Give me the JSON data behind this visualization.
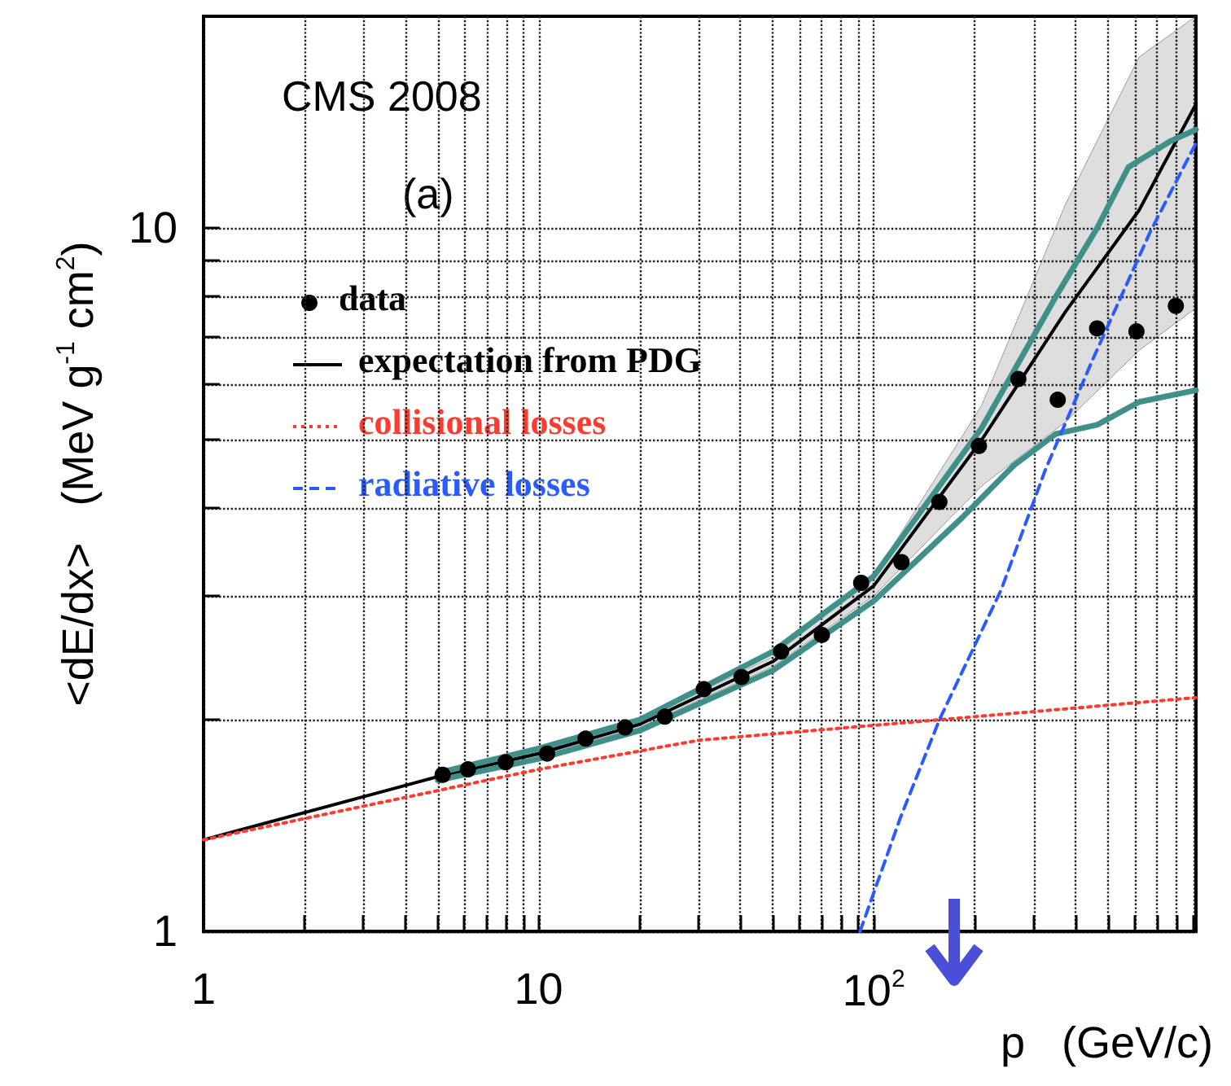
{
  "chart_data": {
    "type": "line",
    "xlabel": "p   (GeV/c)",
    "ylabel": "<dE/dx>   (MeV g$^{-1}$ cm$^{2}$)",
    "annotations": [
      "CMS 2008",
      "(a)"
    ],
    "log": "xy",
    "xlim": [
      1,
      915
    ],
    "ylim": [
      1,
      20
    ],
    "xticks": [
      1,
      {
        "value": 2,
        "label": null
      },
      {
        "value": 3,
        "label": null
      },
      {
        "value": 4,
        "label": null
      },
      {
        "value": 5,
        "label": null
      },
      {
        "value": 6,
        "label": null
      },
      {
        "value": 7,
        "label": null
      },
      {
        "value": 8,
        "label": null
      },
      {
        "value": 9,
        "label": null
      },
      10,
      {
        "value": 20,
        "label": null
      },
      {
        "value": 30,
        "label": null
      },
      {
        "value": 40,
        "label": null
      },
      {
        "value": 50,
        "label": null
      },
      {
        "value": 60,
        "label": null
      },
      {
        "value": 70,
        "label": null
      },
      {
        "value": 80,
        "label": null
      },
      {
        "value": 90,
        "label": null
      },
      {
        "value": 100,
        "label": "10$^{2}$"
      },
      {
        "value": 200,
        "label": null
      },
      {
        "value": 300,
        "label": null
      },
      {
        "value": 400,
        "label": null
      },
      {
        "value": 500,
        "label": null
      },
      {
        "value": 600,
        "label": null
      },
      {
        "value": 700,
        "label": null
      },
      {
        "value": 800,
        "label": null
      },
      {
        "value": 900,
        "label": null
      }
    ],
    "yticks": [
      1,
      {
        "value": 2,
        "label": null
      },
      {
        "value": 3,
        "label": null
      },
      {
        "value": 4,
        "label": null
      },
      {
        "value": 5,
        "label": null
      },
      {
        "value": 6,
        "label": null
      },
      {
        "value": 7,
        "label": null
      },
      {
        "value": 8,
        "label": null
      },
      {
        "value": 9,
        "label": null
      },
      10
    ],
    "grid": true,
    "legend": "left",
    "series": [
      {
        "name": "data",
        "type": "scatter",
        "marker": "circle",
        "color": "#000000",
        "x": [
          5.17,
          6.15,
          7.97,
          10.6,
          13.8,
          18.1,
          23.8,
          31.1,
          40.3,
          52.9,
          70,
          91.7,
          121,
          157,
          206,
          270,
          354,
          464,
          608,
          797
        ],
        "values": [
          1.67,
          1.7,
          1.74,
          1.79,
          1.88,
          1.95,
          2.02,
          2.21,
          2.3,
          2.5,
          2.64,
          3.13,
          3.35,
          4.08,
          4.9,
          6.1,
          5.7,
          7.2,
          7.13,
          7.75
        ]
      },
      {
        "name": "expectation from PDG",
        "marker": "none",
        "line_style": "solid",
        "color": "#000000",
        "x": [
          1,
          5,
          10,
          20,
          50,
          100,
          210,
          373,
          619,
          915
        ],
        "values": [
          1.35,
          1.66,
          1.79,
          1.97,
          2.42,
          3.1,
          5.0,
          7.6,
          10.6,
          15.0
        ],
        "lower": [
          1.35,
          1.66,
          1.78,
          1.95,
          2.38,
          3.0,
          4.3,
          5.3,
          6.7,
          7.7
        ],
        "upper": [
          1.35,
          1.66,
          1.8,
          1.99,
          2.46,
          3.2,
          5.6,
          10.8,
          17.5,
          20
        ]
      },
      {
        "marker": "none",
        "line_style": "solid",
        "color": "#3f8f8a",
        "x": [
          5,
          10,
          20,
          50,
          100,
          210,
          350,
          464,
          575,
          770,
          915
        ],
        "values": [
          1.68,
          1.82,
          2.0,
          2.5,
          3.2,
          5.2,
          8.0,
          10.0,
          12.2,
          13.3,
          13.8
        ]
      },
      {
        "marker": "none",
        "line_style": "solid",
        "color": "#3f8f8a",
        "x": [
          5,
          10,
          20,
          50,
          100,
          183,
          262,
          350,
          464,
          619,
          915
        ],
        "values": [
          1.64,
          1.76,
          1.93,
          2.35,
          2.95,
          3.87,
          4.6,
          5.1,
          5.25,
          5.66,
          5.88
        ]
      },
      {
        "name": "collisional losses",
        "marker": "none",
        "line_style": "dotted",
        "color": "#ff3b2f",
        "x": [
          1,
          10,
          30,
          157,
          915
        ],
        "values": [
          1.35,
          1.7,
          1.87,
          2.0,
          2.15
        ]
      },
      {
        "name": "radiative losses",
        "marker": "none",
        "line_style": "dashed",
        "color": "#2a5bff",
        "x": [
          91,
          120,
          157,
          240,
          325,
          450,
          670,
          915
        ],
        "values": [
          1.0,
          1.45,
          2.0,
          3.06,
          4.53,
          6.5,
          9.9,
          13.2
        ]
      }
    ]
  }
}
